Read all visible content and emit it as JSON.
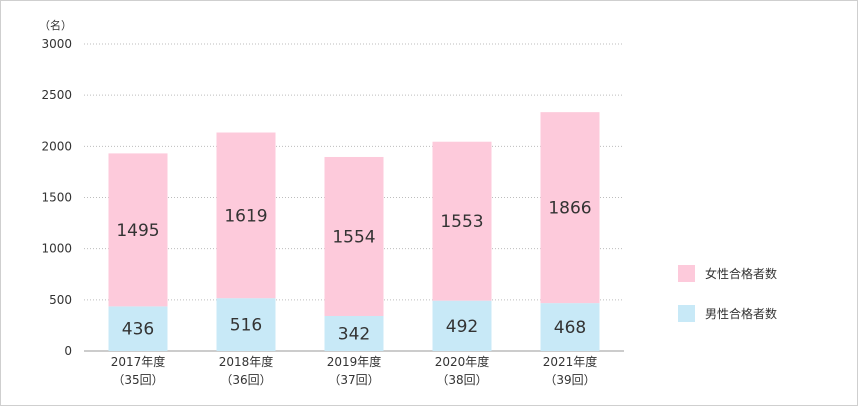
{
  "chart_data": {
    "type": "bar",
    "stacked": true,
    "unit_label": "（名）",
    "categories": [
      {
        "year": "2017年度",
        "round": "（35回）"
      },
      {
        "year": "2018年度",
        "round": "（36回）"
      },
      {
        "year": "2019年度",
        "round": "（37回）"
      },
      {
        "year": "2020年度",
        "round": "（38回）"
      },
      {
        "year": "2021年度",
        "round": "（39回）"
      }
    ],
    "series": [
      {
        "name": "男性合格者数",
        "color": "#c8e9f7",
        "values": [
          436,
          516,
          342,
          492,
          468
        ]
      },
      {
        "name": "女性合格者数",
        "color": "#fdcadb",
        "values": [
          1495,
          1619,
          1554,
          1553,
          1866
        ]
      }
    ],
    "ylim": [
      0,
      3000
    ],
    "yticks": [
      0,
      500,
      1000,
      1500,
      2000,
      2500,
      3000
    ],
    "grid": true,
    "legend_position": "right",
    "legend_order": [
      1,
      0
    ]
  }
}
